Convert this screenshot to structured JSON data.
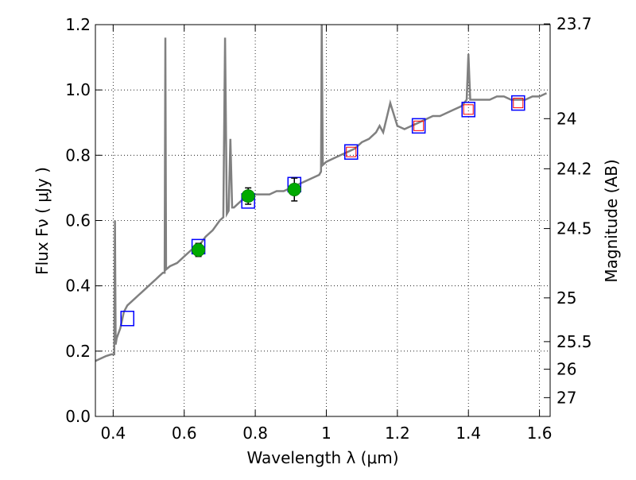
{
  "chart_data": {
    "type": "line",
    "xlabel": "Wavelength  λ (μm)",
    "ylabel": "Flux  Fν  ( μJy )",
    "y2label": "Magnitude (AB)",
    "xlim": [
      0.35,
      1.63
    ],
    "ylim": [
      0.0,
      1.2
    ],
    "grid": true,
    "x_ticks": [
      0.4,
      0.6,
      0.8,
      1.0,
      1.2,
      1.4,
      1.6
    ],
    "x_tick_labels": [
      "0.4",
      "0.6",
      "0.8",
      "1",
      "1.2",
      "1.4",
      "1.6"
    ],
    "y_ticks": [
      0.0,
      0.2,
      0.4,
      0.6,
      0.8,
      1.0,
      1.2
    ],
    "y_tick_labels": [
      "0.0",
      "0.2",
      "0.4",
      "0.6",
      "0.8",
      "1.0",
      "1.2"
    ],
    "y2_ticks": [
      {
        "label": "23.7",
        "mag": 23.7
      },
      {
        "label": "24",
        "mag": 24.0
      },
      {
        "label": "24.2",
        "mag": 24.2
      },
      {
        "label": "24.5",
        "mag": 24.5
      },
      {
        "label": "25",
        "mag": 25.0
      },
      {
        "label": "25.5",
        "mag": 25.5
      },
      {
        "label": "26",
        "mag": 26.0
      },
      {
        "label": "27",
        "mag": 27.0
      }
    ],
    "series": [
      {
        "kind": "spectrum",
        "color": "#808080",
        "points": [
          [
            0.35,
            0.17
          ],
          [
            0.36,
            0.175
          ],
          [
            0.37,
            0.18
          ],
          [
            0.38,
            0.185
          ],
          [
            0.395,
            0.19
          ],
          [
            0.403,
            0.19
          ],
          [
            0.405,
            0.6
          ],
          [
            0.407,
            0.22
          ],
          [
            0.41,
            0.24
          ],
          [
            0.42,
            0.27
          ],
          [
            0.43,
            0.32
          ],
          [
            0.44,
            0.34
          ],
          [
            0.45,
            0.35
          ],
          [
            0.46,
            0.36
          ],
          [
            0.47,
            0.37
          ],
          [
            0.48,
            0.38
          ],
          [
            0.49,
            0.39
          ],
          [
            0.5,
            0.4
          ],
          [
            0.51,
            0.41
          ],
          [
            0.52,
            0.42
          ],
          [
            0.53,
            0.43
          ],
          [
            0.54,
            0.44
          ],
          [
            0.545,
            0.44
          ],
          [
            0.547,
            1.16
          ],
          [
            0.549,
            0.45
          ],
          [
            0.56,
            0.46
          ],
          [
            0.58,
            0.47
          ],
          [
            0.6,
            0.49
          ],
          [
            0.62,
            0.51
          ],
          [
            0.64,
            0.52
          ],
          [
            0.66,
            0.55
          ],
          [
            0.68,
            0.57
          ],
          [
            0.7,
            0.6
          ],
          [
            0.71,
            0.61
          ],
          [
            0.715,
            1.16
          ],
          [
            0.72,
            0.62
          ],
          [
            0.725,
            0.63
          ],
          [
            0.73,
            0.85
          ],
          [
            0.735,
            0.64
          ],
          [
            0.74,
            0.64
          ],
          [
            0.76,
            0.66
          ],
          [
            0.78,
            0.67
          ],
          [
            0.8,
            0.68
          ],
          [
            0.82,
            0.68
          ],
          [
            0.84,
            0.68
          ],
          [
            0.86,
            0.69
          ],
          [
            0.88,
            0.69
          ],
          [
            0.9,
            0.7
          ],
          [
            0.92,
            0.71
          ],
          [
            0.94,
            0.72
          ],
          [
            0.96,
            0.73
          ],
          [
            0.98,
            0.74
          ],
          [
            0.985,
            0.75
          ],
          [
            0.987,
            1.2
          ],
          [
            0.99,
            0.77
          ],
          [
            1.0,
            0.78
          ],
          [
            1.02,
            0.79
          ],
          [
            1.04,
            0.8
          ],
          [
            1.06,
            0.81
          ],
          [
            1.08,
            0.82
          ],
          [
            1.1,
            0.84
          ],
          [
            1.12,
            0.85
          ],
          [
            1.14,
            0.87
          ],
          [
            1.15,
            0.89
          ],
          [
            1.16,
            0.87
          ],
          [
            1.18,
            0.96
          ],
          [
            1.2,
            0.89
          ],
          [
            1.22,
            0.88
          ],
          [
            1.24,
            0.89
          ],
          [
            1.26,
            0.9
          ],
          [
            1.28,
            0.91
          ],
          [
            1.3,
            0.92
          ],
          [
            1.32,
            0.92
          ],
          [
            1.34,
            0.93
          ],
          [
            1.36,
            0.94
          ],
          [
            1.38,
            0.95
          ],
          [
            1.395,
            0.97
          ],
          [
            1.4,
            1.11
          ],
          [
            1.405,
            0.97
          ],
          [
            1.42,
            0.97
          ],
          [
            1.44,
            0.97
          ],
          [
            1.46,
            0.97
          ],
          [
            1.48,
            0.98
          ],
          [
            1.5,
            0.98
          ],
          [
            1.52,
            0.97
          ],
          [
            1.54,
            0.97
          ],
          [
            1.56,
            0.97
          ],
          [
            1.58,
            0.98
          ],
          [
            1.6,
            0.98
          ],
          [
            1.62,
            0.99
          ]
        ]
      },
      {
        "kind": "model_photometry",
        "marker": "square",
        "color": "#0000ff",
        "points": [
          [
            0.44,
            0.3
          ],
          [
            0.64,
            0.52
          ],
          [
            0.78,
            0.66
          ],
          [
            0.91,
            0.71
          ],
          [
            1.07,
            0.81
          ],
          [
            1.26,
            0.89
          ],
          [
            1.4,
            0.94
          ],
          [
            1.54,
            0.96
          ]
        ]
      },
      {
        "kind": "model_photometry_inner",
        "marker": "square",
        "color": "#ff0000",
        "points": [
          [
            1.07,
            0.81
          ],
          [
            1.26,
            0.89
          ],
          [
            1.4,
            0.94
          ],
          [
            1.54,
            0.96
          ]
        ]
      },
      {
        "kind": "observed",
        "marker": "circle",
        "color": "#00aa00",
        "points": [
          {
            "x": 0.64,
            "y": 0.51,
            "err": 0.02
          },
          {
            "x": 0.78,
            "y": 0.675,
            "err": 0.025
          },
          {
            "x": 0.91,
            "y": 0.695,
            "err": 0.035
          }
        ]
      }
    ]
  }
}
